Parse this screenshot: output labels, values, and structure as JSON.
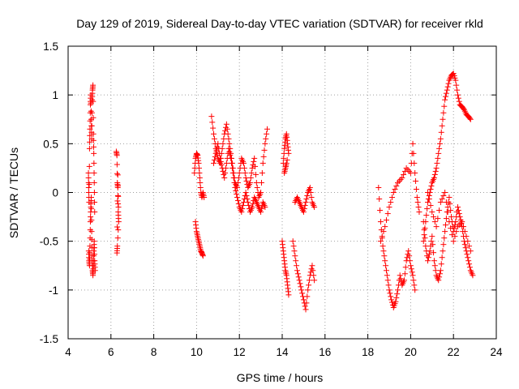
{
  "chart_data": {
    "type": "scatter",
    "title": "Day 129 of 2019, Sidereal Day-to-day VTEC variation (SDTVAR) for receiver rkld",
    "xlabel": "GPS time / hours",
    "ylabel": "SDTVAR / TECUs",
    "xlim": [
      4,
      24
    ],
    "ylim": [
      -1.5,
      1.5
    ],
    "xticks": [
      "4",
      "6",
      "8",
      "10",
      "12",
      "14",
      "16",
      "18",
      "20",
      "22",
      "24"
    ],
    "yticks": [
      "1.5",
      "1",
      "0.5",
      "0",
      "-0.5",
      "-1",
      "-1.5"
    ],
    "grid": true,
    "marker": "+",
    "color": "#ff0000",
    "series": [
      {
        "x": [
          4.95,
          4.96,
          4.98,
          5.0,
          5.02,
          5.04,
          5.06,
          5.08,
          5.1,
          5.12,
          5.14,
          5.16,
          5.18,
          5.2,
          5.22,
          5.24
        ],
        "y": [
          0.2,
          0.05,
          -0.1,
          0.45,
          0.65,
          0.9,
          1.0,
          0.75,
          0.55,
          0.95,
          1.05,
          1.1,
          0.6,
          0.4,
          0.1,
          -0.2
        ]
      },
      {
        "x": [
          4.96,
          4.98,
          5.0,
          5.02,
          5.04,
          5.06,
          5.08,
          5.1,
          5.12,
          5.14,
          5.16,
          5.18,
          5.2,
          5.22,
          5.24,
          5.26
        ],
        "y": [
          -0.6,
          -0.7,
          -0.75,
          -0.55,
          -0.3,
          -0.15,
          -0.05,
          -0.4,
          -0.65,
          -0.8,
          -0.85,
          -0.75,
          -0.6,
          -0.5,
          -0.7,
          -0.8
        ]
      },
      {
        "x": [
          6.25,
          6.28,
          6.3,
          6.32,
          6.34,
          6.36,
          6.3,
          6.28,
          6.32,
          6.35
        ],
        "y": [
          0.42,
          0.38,
          0.1,
          0.05,
          -0.2,
          -0.3,
          -0.55,
          -0.62,
          0.18,
          -0.15
        ]
      },
      {
        "x": [
          9.9,
          9.95,
          10.0,
          10.05,
          10.1,
          10.15,
          10.2,
          10.25,
          10.3,
          10.35
        ],
        "y": [
          0.2,
          0.35,
          0.4,
          0.38,
          0.3,
          0.15,
          0.0,
          -0.05,
          0.0,
          -0.05
        ]
      },
      {
        "x": [
          9.95,
          10.0,
          10.05,
          10.1,
          10.15,
          10.2,
          10.25,
          10.3
        ],
        "y": [
          -0.3,
          -0.4,
          -0.45,
          -0.5,
          -0.55,
          -0.6,
          -0.62,
          -0.65
        ]
      },
      {
        "x": [
          10.7,
          10.8,
          10.9,
          11.0,
          11.1,
          11.2,
          11.3,
          11.4,
          11.5,
          11.6,
          11.7,
          11.8,
          11.9,
          12.0,
          12.1,
          12.2,
          12.3,
          12.4,
          12.5,
          12.6,
          12.7,
          12.8,
          12.9,
          13.0,
          13.1,
          13.2,
          13.3
        ],
        "y": [
          0.78,
          0.6,
          0.45,
          0.35,
          0.3,
          0.45,
          0.6,
          0.7,
          0.55,
          0.4,
          0.25,
          0.1,
          0.05,
          0.2,
          0.35,
          0.3,
          0.15,
          0.05,
          0.1,
          0.25,
          0.35,
          0.1,
          -0.05,
          0.0,
          0.3,
          0.5,
          0.65
        ]
      },
      {
        "x": [
          10.8,
          10.9,
          11.0,
          11.1,
          11.2,
          11.3,
          11.4,
          11.5,
          11.6,
          11.7,
          11.8,
          11.9,
          12.0,
          12.1,
          12.2,
          12.3,
          12.4,
          12.5,
          12.6,
          12.7,
          12.8,
          12.9,
          13.0,
          13.1,
          13.2
        ],
        "y": [
          0.3,
          0.4,
          0.5,
          0.35,
          0.25,
          0.15,
          0.3,
          0.45,
          0.35,
          0.2,
          0.05,
          -0.05,
          -0.15,
          -0.2,
          -0.1,
          0.0,
          -0.1,
          -0.2,
          -0.15,
          -0.05,
          -0.1,
          -0.15,
          -0.2,
          -0.1,
          -0.15
        ]
      },
      {
        "x": [
          14.05,
          14.1,
          14.15,
          14.2,
          14.25,
          14.3,
          14.1,
          14.15,
          14.2
        ],
        "y": [
          0.3,
          0.45,
          0.55,
          0.6,
          0.5,
          0.4,
          0.2,
          0.25,
          0.3
        ]
      },
      {
        "x": [
          14.0,
          14.05,
          14.1,
          14.15,
          14.2,
          14.25,
          14.3
        ],
        "y": [
          -0.5,
          -0.6,
          -0.7,
          -0.8,
          -0.85,
          -0.95,
          -1.05
        ]
      },
      {
        "x": [
          14.5,
          14.6,
          14.7,
          14.8,
          14.9,
          15.0,
          15.1,
          15.2,
          15.3,
          15.4,
          15.5
        ],
        "y": [
          -0.5,
          -0.65,
          -0.8,
          -0.9,
          -1.0,
          -1.1,
          -1.2,
          -1.0,
          -0.85,
          -0.75,
          -0.9
        ]
      },
      {
        "x": [
          14.6,
          14.7,
          14.8,
          14.9,
          15.0,
          15.1,
          15.2,
          15.3,
          15.4,
          15.5
        ],
        "y": [
          -0.1,
          -0.05,
          -0.1,
          -0.15,
          -0.2,
          -0.1,
          0.0,
          0.05,
          -0.1,
          -0.15
        ]
      },
      {
        "x": [
          18.5,
          18.6,
          18.7,
          18.8,
          18.9,
          19.0,
          19.1,
          19.2,
          19.3,
          19.4,
          19.5,
          19.6,
          19.7,
          19.8,
          19.9,
          20.0,
          20.1,
          20.2
        ],
        "y": [
          0.05,
          -0.3,
          -0.55,
          -0.7,
          -0.85,
          -1.0,
          -1.1,
          -1.18,
          -1.12,
          -1.0,
          -0.85,
          -0.95,
          -0.9,
          -0.7,
          -0.6,
          -0.75,
          -0.85,
          -1.0
        ]
      },
      {
        "x": [
          18.6,
          18.8,
          19.0,
          19.2,
          19.4,
          19.6,
          19.8,
          20.0,
          20.1,
          20.2,
          20.3,
          20.4
        ],
        "y": [
          -0.5,
          -0.35,
          -0.15,
          0.0,
          0.1,
          0.15,
          0.25,
          0.2,
          0.5,
          0.2,
          -0.05,
          -0.2
        ]
      },
      {
        "x": [
          20.6,
          20.7,
          20.8,
          20.9,
          21.0,
          21.1,
          21.2,
          21.3,
          21.4,
          21.5,
          21.6,
          21.7,
          21.8,
          21.9,
          22.0,
          22.1,
          22.2,
          22.3,
          22.4,
          22.5,
          22.6,
          22.7,
          22.8
        ],
        "y": [
          -0.5,
          -0.3,
          -0.1,
          0.0,
          0.1,
          0.15,
          0.25,
          0.4,
          0.55,
          0.75,
          0.95,
          1.05,
          1.15,
          1.2,
          1.22,
          1.15,
          1.0,
          0.9,
          0.88,
          0.85,
          0.8,
          0.78,
          0.75
        ]
      },
      {
        "x": [
          20.6,
          20.7,
          20.8,
          20.9,
          21.0,
          21.1,
          21.2,
          21.3,
          21.4,
          21.5,
          21.6,
          21.7,
          21.8,
          21.9,
          22.0,
          22.1,
          22.2,
          22.3,
          22.4,
          22.5,
          22.6,
          22.7,
          22.8,
          22.9
        ],
        "y": [
          -0.3,
          -0.55,
          -0.7,
          -0.6,
          -0.45,
          -0.7,
          -0.85,
          -0.9,
          -0.8,
          -0.6,
          -0.4,
          -0.2,
          -0.05,
          -0.25,
          -0.4,
          -0.3,
          -0.15,
          -0.25,
          -0.35,
          -0.5,
          -0.6,
          -0.7,
          -0.8,
          -0.85
        ]
      },
      {
        "x": [
          20.8,
          21.0,
          21.2,
          21.4,
          21.6,
          21.8,
          22.0,
          22.2,
          22.4,
          22.6,
          22.8
        ],
        "y": [
          0.0,
          -0.2,
          -0.35,
          -0.1,
          0.0,
          -0.3,
          -0.5,
          -0.35,
          -0.3,
          -0.45,
          -0.6
        ]
      }
    ]
  }
}
